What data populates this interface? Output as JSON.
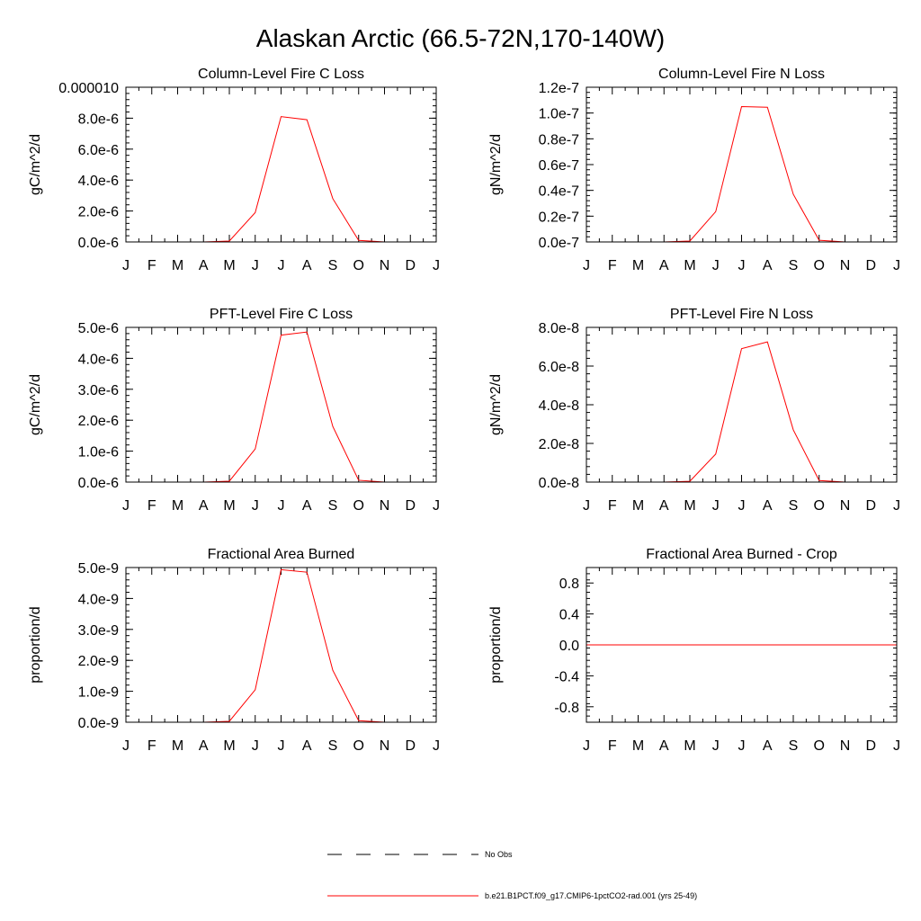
{
  "figure": {
    "title": "Alaskan Arctic (66.5-72N,170-140W)"
  },
  "months": [
    "J",
    "F",
    "M",
    "A",
    "M",
    "J",
    "J",
    "A",
    "S",
    "O",
    "N",
    "D",
    "J"
  ],
  "legend": [
    {
      "label": "No Obs",
      "color": "#000000",
      "style": "dashed"
    },
    {
      "label": "b.e21.B1PCT.f09_g17.CMIP6-1pctCO2-rad.001 (yrs 25-49)",
      "color": "#ff0000",
      "style": "solid"
    }
  ],
  "chart_data": [
    {
      "type": "line",
      "title": "Column-Level Fire C Loss",
      "ylabel": "gC/m^2/d",
      "ylim": [
        0,
        1e-05
      ],
      "yticks": [
        0,
        2e-06,
        4e-06,
        6e-06,
        8e-06,
        1e-05
      ],
      "ytick_labels": [
        "0.0e-6",
        "2.0e-6",
        "4.0e-6",
        "6.0e-6",
        "8.0e-6",
        "0.000010"
      ],
      "x": [
        "J",
        "F",
        "M",
        "A",
        "M",
        "J",
        "J",
        "A",
        "S",
        "O",
        "N",
        "D",
        "J"
      ],
      "series": [
        {
          "color": "#ff0000",
          "values": [
            0,
            0,
            0,
            0,
            6e-08,
            1.9e-06,
            8.1e-06,
            7.9e-06,
            2.8e-06,
            1e-07,
            0,
            0,
            0
          ]
        }
      ]
    },
    {
      "type": "line",
      "title": "Column-Level Fire N Loss",
      "ylabel": "gN/m^2/d",
      "ylim": [
        0,
        1.2e-07
      ],
      "yticks": [
        0,
        2e-08,
        4e-08,
        6e-08,
        8e-08,
        1e-07,
        1.2e-07
      ],
      "ytick_labels": [
        "0.0e-7",
        "0.2e-7",
        "0.4e-7",
        "0.6e-7",
        "0.8e-7",
        "1.0e-7",
        "1.2e-7"
      ],
      "x": [
        "J",
        "F",
        "M",
        "A",
        "M",
        "J",
        "J",
        "A",
        "S",
        "O",
        "N",
        "D",
        "J"
      ],
      "series": [
        {
          "color": "#ff0000",
          "values": [
            0,
            0,
            0,
            0,
            7e-10,
            2.35e-08,
            1.05e-07,
            1.045e-07,
            3.7e-08,
            1.3e-09,
            0,
            0,
            0
          ]
        }
      ]
    },
    {
      "type": "line",
      "title": "PFT-Level Fire C Loss",
      "ylabel": "gC/m^2/d",
      "ylim": [
        0,
        5e-06
      ],
      "yticks": [
        0,
        1e-06,
        2e-06,
        3e-06,
        4e-06,
        5e-06
      ],
      "ytick_labels": [
        "0.0e-6",
        "1.0e-6",
        "2.0e-6",
        "3.0e-6",
        "4.0e-6",
        "5.0e-6"
      ],
      "x": [
        "J",
        "F",
        "M",
        "A",
        "M",
        "J",
        "J",
        "A",
        "S",
        "O",
        "N",
        "D",
        "J"
      ],
      "series": [
        {
          "color": "#ff0000",
          "values": [
            0,
            0,
            0,
            0,
            3e-08,
            1.07e-06,
            4.75e-06,
            4.85e-06,
            1.8e-06,
            6e-08,
            0,
            0,
            0
          ]
        }
      ]
    },
    {
      "type": "line",
      "title": "PFT-Level Fire N Loss",
      "ylabel": "gN/m^2/d",
      "ylim": [
        0,
        8e-08
      ],
      "yticks": [
        0,
        2e-08,
        4e-08,
        6e-08,
        8e-08
      ],
      "ytick_labels": [
        "0.0e-8",
        "2.0e-8",
        "4.0e-8",
        "6.0e-8",
        "8.0e-8"
      ],
      "x": [
        "J",
        "F",
        "M",
        "A",
        "M",
        "J",
        "J",
        "A",
        "S",
        "O",
        "N",
        "D",
        "J"
      ],
      "series": [
        {
          "color": "#ff0000",
          "values": [
            0,
            0,
            0,
            0,
            4e-10,
            1.45e-08,
            6.9e-08,
            7.25e-08,
            2.7e-08,
            8e-10,
            0,
            0,
            0
          ]
        }
      ]
    },
    {
      "type": "line",
      "title": "Fractional Area Burned",
      "ylabel": "proportion/d",
      "ylim": [
        0,
        5e-09
      ],
      "yticks": [
        0,
        1e-09,
        2e-09,
        3e-09,
        4e-09,
        5e-09
      ],
      "ytick_labels": [
        "0.0e-9",
        "1.0e-9",
        "2.0e-9",
        "3.0e-9",
        "4.0e-9",
        "5.0e-9"
      ],
      "x": [
        "J",
        "F",
        "M",
        "A",
        "M",
        "J",
        "J",
        "A",
        "S",
        "O",
        "N",
        "D",
        "J"
      ],
      "series": [
        {
          "color": "#ff0000",
          "values": [
            0,
            0,
            0,
            0,
            3e-11,
            1.05e-09,
            4.93e-09,
            4.85e-09,
            1.68e-09,
            5e-11,
            0,
            0,
            0
          ]
        }
      ]
    },
    {
      "type": "line",
      "title": "Fractional Area Burned - Crop",
      "ylabel": "proportion/d",
      "ylim": [
        -1,
        1
      ],
      "yticks": [
        -0.8,
        -0.4,
        0,
        0.4,
        0.8
      ],
      "ytick_labels": [
        "-0.8",
        "-0.4",
        "0.0",
        "0.4",
        "0.8"
      ],
      "x": [
        "J",
        "F",
        "M",
        "A",
        "M",
        "J",
        "J",
        "A",
        "S",
        "O",
        "N",
        "D",
        "J"
      ],
      "series": [
        {
          "color": "#ff0000",
          "values": [
            0,
            0,
            0,
            0,
            0,
            0,
            0,
            0,
            0,
            0,
            0,
            0,
            0
          ]
        }
      ]
    }
  ]
}
